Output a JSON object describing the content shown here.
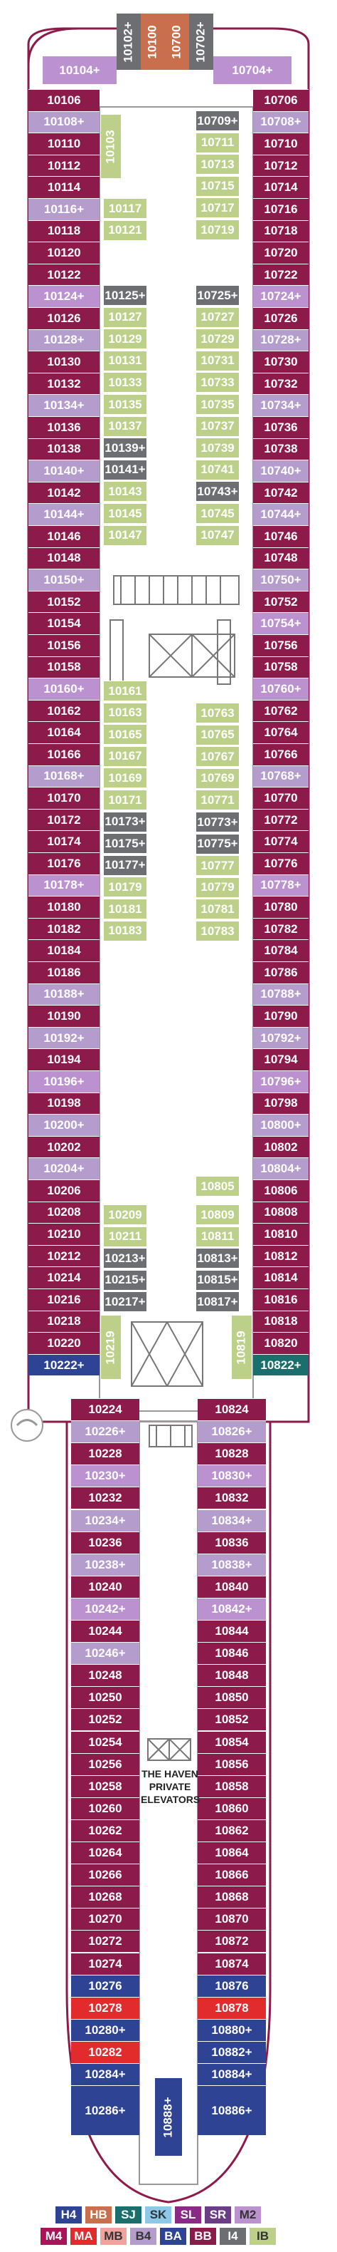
{
  "colors": {
    "M4": "#aa1459",
    "H4": "#2f4395",
    "HB": "#c96f4d",
    "SJ": "#1a6e6c",
    "SK": "#8dc8e8",
    "SL": "#8b2a86",
    "SR": "#6c3d87",
    "M2": "#bb92cf",
    "MA": "#e22b2d",
    "MB": "#f0a29c",
    "B4": "#b49ccd",
    "BA": "#2f4395",
    "BB": "#8c1b4c",
    "I4": "#6d6e71",
    "IB": "#bcd08a"
  },
  "forward": {
    "top": [
      "10102+",
      "10100",
      "10700",
      "10702+"
    ],
    "corners": [
      "10104+",
      "10704+"
    ]
  },
  "port_upper": [
    "10106",
    "10108+",
    "10110",
    "10112",
    "10114",
    "10116+",
    "10118",
    "10120",
    "10122",
    "10124+",
    "10126",
    "10128+",
    "10130",
    "10132",
    "10134+",
    "10136",
    "10138",
    "10140+",
    "10142",
    "10144+",
    "10146",
    "10148",
    "10150+",
    "10152",
    "10154",
    "10156",
    "10158",
    "10160+",
    "10162",
    "10164",
    "10166",
    "10168+",
    "10170",
    "10172",
    "10174",
    "10176",
    "10178+",
    "10180",
    "10182",
    "10184",
    "10186",
    "10188+",
    "10190",
    "10192+",
    "10194",
    "10196+",
    "10198",
    "10200+",
    "10202",
    "10204+",
    "10206",
    "10208",
    "10210",
    "10212",
    "10214",
    "10216",
    "10218",
    "10220",
    "10222+"
  ],
  "stbd_upper": [
    "10706",
    "10708+",
    "10710",
    "10712",
    "10714",
    "10716",
    "10718",
    "10720",
    "10722",
    "10724+",
    "10726",
    "10728+",
    "10730",
    "10732",
    "10734+",
    "10736",
    "10738",
    "10740+",
    "10742",
    "10744+",
    "10746",
    "10748",
    "10750+",
    "10752",
    "10754+",
    "10756",
    "10758",
    "10760+",
    "10762",
    "10764",
    "10766",
    "10768+",
    "10770",
    "10772",
    "10774",
    "10776",
    "10778+",
    "10780",
    "10782",
    "10784",
    "10786",
    "10788+",
    "10790",
    "10792+",
    "10794",
    "10796+",
    "10798",
    "10800+",
    "10802",
    "10804+",
    "10806",
    "10808",
    "10810",
    "10812",
    "10814",
    "10816",
    "10818",
    "10820",
    "10822+"
  ],
  "port_lower": [
    "10224",
    "10226+",
    "10228",
    "10230+",
    "10232",
    "10234+",
    "10236",
    "10238+",
    "10240",
    "10242+",
    "10244",
    "10246+",
    "10248",
    "10250",
    "10252",
    "10254",
    "10256",
    "10258",
    "10260",
    "10262",
    "10264",
    "10266",
    "10268",
    "10270",
    "10272",
    "10274",
    "10276",
    "10278",
    "10280+",
    "10282",
    "10284+",
    "10286+"
  ],
  "stbd_lower": [
    "10824",
    "10826+",
    "10828",
    "10830+",
    "10832",
    "10834+",
    "10836",
    "10838+",
    "10840",
    "10842+",
    "10844",
    "10846",
    "10848",
    "10850",
    "10852",
    "10854",
    "10856",
    "10858",
    "10860",
    "10862",
    "10864",
    "10866",
    "10868",
    "10870",
    "10872",
    "10874",
    "10876",
    "10878",
    "10880+",
    "10882+",
    "10884+",
    "10886+"
  ],
  "inner_port_a": [
    "10117",
    "10121",
    "10125+",
    "10127",
    "10129",
    "10131",
    "10133",
    "10135",
    "10137",
    "10139+",
    "10141+",
    "10143",
    "10145",
    "10147"
  ],
  "inner_stbd_a": [
    "10709+",
    "10711",
    "10713",
    "10715",
    "10717",
    "10719",
    "10725+",
    "10727",
    "10729",
    "10731",
    "10733",
    "10735",
    "10737",
    "10739",
    "10741",
    "10743+",
    "10745",
    "10747"
  ],
  "inner_port_b": [
    "10161",
    "10163",
    "10165",
    "10167",
    "10169",
    "10171",
    "10173+",
    "10175+",
    "10177+",
    "10179",
    "10181",
    "10183"
  ],
  "inner_stbd_b": [
    "10763",
    "10765",
    "10767",
    "10769",
    "10771",
    "10773+",
    "10775+",
    "10777",
    "10779",
    "10781",
    "10783"
  ],
  "inner_port_c": [
    "10209",
    "10211",
    "10213+",
    "10215+",
    "10217+"
  ],
  "inner_stbd_c": [
    "10805",
    "10809",
    "10811",
    "10813+",
    "10815+",
    "10817+"
  ],
  "inner_sideways": [
    "10103",
    "10219",
    "10819"
  ],
  "aft_center": "10888+",
  "haven_label": [
    "THE HAVEN",
    "PRIVATE",
    "ELEVATORS"
  ],
  "legend": {
    "row1": [
      "H4",
      "HB",
      "SJ",
      "SK",
      "SL",
      "SR",
      "M2"
    ],
    "row2": [
      "M4",
      "MA",
      "MB",
      "B4",
      "BA",
      "BB",
      "I4",
      "IB"
    ]
  }
}
